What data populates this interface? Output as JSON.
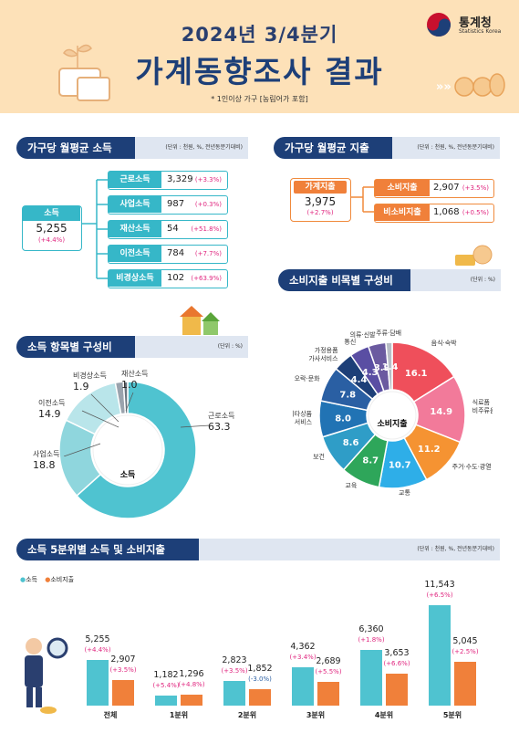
{
  "header": {
    "title_line1": "2024년 3/4분기",
    "title_line2": "가계동향조사 결과",
    "note": "* 1인이상 가구 [농림어가 포함]",
    "logo_name": "통계청",
    "logo_sub": "Statistics Korea",
    "arrows": "»»"
  },
  "income_section": {
    "title": "가구당 월평균 소득",
    "unit": "(단위 : 천원, %, 전년동분기대비)",
    "total_label": "소득",
    "total_value": "5,255",
    "total_change": "(+4.4%)",
    "items": [
      {
        "label": "근로소득",
        "value": "3,329",
        "change": "(+3.3%)"
      },
      {
        "label": "사업소득",
        "value": "987",
        "change": "(+0.3%)"
      },
      {
        "label": "재산소득",
        "value": "54",
        "change": "(+51.8%)"
      },
      {
        "label": "이전소득",
        "value": "784",
        "change": "(+7.7%)"
      },
      {
        "label": "비경상소득",
        "value": "102",
        "change": "(+63.9%)"
      }
    ]
  },
  "expense_section": {
    "title": "가구당 월평균 지출",
    "unit": "(단위 : 천원, %, 전년동분기대비)",
    "total_label": "가계지출",
    "total_value": "3,975",
    "total_change": "(+2.7%)",
    "items": [
      {
        "label": "소비지출",
        "value": "2,907",
        "change": "(+3.5%)"
      },
      {
        "label": "비소비지출",
        "value": "1,068",
        "change": "(+0.5%)"
      }
    ]
  },
  "chart_data": [
    {
      "type": "pie",
      "title": "소득 항목별 구성비",
      "unit": "(단위 : %)",
      "center_label": "소득",
      "categories": [
        "근로소득",
        "사업소득",
        "이전소득",
        "비경상소득",
        "재산소득"
      ],
      "values": [
        63.3,
        18.8,
        14.9,
        1.9,
        1.0
      ],
      "value_labels": [
        "63.3",
        "18.8",
        "14.9",
        "1.9",
        "1.0"
      ],
      "colors": [
        "#4fc3d0",
        "#8fd6dd",
        "#b9e5ea",
        "#9aa3ad",
        "#6b7681"
      ]
    },
    {
      "type": "pie",
      "title": "소비지출 비목별 구성비",
      "unit": "(단위 : %)",
      "center_label": "소비지출",
      "categories": [
        "음식·숙박",
        "식료품 비주류음료",
        "주거·수도·광열",
        "교통",
        "교육",
        "보건",
        "기타상품 서비스",
        "오락·문화",
        "가정용품 가사서비스",
        "통신",
        "의류·신발",
        "주류·담배"
      ],
      "values": [
        16.1,
        14.9,
        11.2,
        10.7,
        8.7,
        8.6,
        8.0,
        7.8,
        4.4,
        4.3,
        3.9,
        1.4
      ],
      "value_labels": [
        "16.1",
        "14.9",
        "11.2",
        "10.7",
        "8.7",
        "8.6",
        "8.0",
        "7.8",
        "4.4",
        "4.3",
        "3.9",
        "1.4"
      ],
      "colors": [
        "#ef4f5b",
        "#f27a9a",
        "#f59332",
        "#2eaee8",
        "#2ea65a",
        "#2f9dc7",
        "#2173b4",
        "#2a5fa3",
        "#1d3f78",
        "#5a4ea3",
        "#6b5aa0",
        "#b8bec6"
      ]
    },
    {
      "type": "bar",
      "title": "소득 5분위별 소득 및 소비지출",
      "unit": "(단위 : 천원, %, 전년동분기대비)",
      "categories": [
        "전체",
        "1분위",
        "2분위",
        "3분위",
        "4분위",
        "5분위"
      ],
      "series": [
        {
          "name": "소득",
          "values": [
            5255,
            1182,
            2823,
            4362,
            6360,
            11543
          ],
          "value_labels": [
            "5,255",
            "1,182",
            "2,823",
            "4,362",
            "6,360",
            "11,543"
          ],
          "changes": [
            "(+4.4%)",
            "(+5.4%)",
            "(+3.5%)",
            "(+3.4%)",
            "(+1.8%)",
            "(+6.5%)"
          ],
          "color": "#4fc3d0"
        },
        {
          "name": "소비지출",
          "values": [
            2907,
            1296,
            1852,
            2689,
            3653,
            5045
          ],
          "value_labels": [
            "2,907",
            "1,296",
            "1,852",
            "2,689",
            "3,653",
            "5,045"
          ],
          "changes": [
            "(+3.5%)",
            "(+4.8%)",
            "(-3.0%)",
            "(+5.5%)",
            "(+6.6%)",
            "(+2.5%)"
          ],
          "color": "#f0803a"
        }
      ],
      "change_colors": {
        "positive": "#e0267f",
        "negative": "#2a5fa3"
      }
    }
  ]
}
